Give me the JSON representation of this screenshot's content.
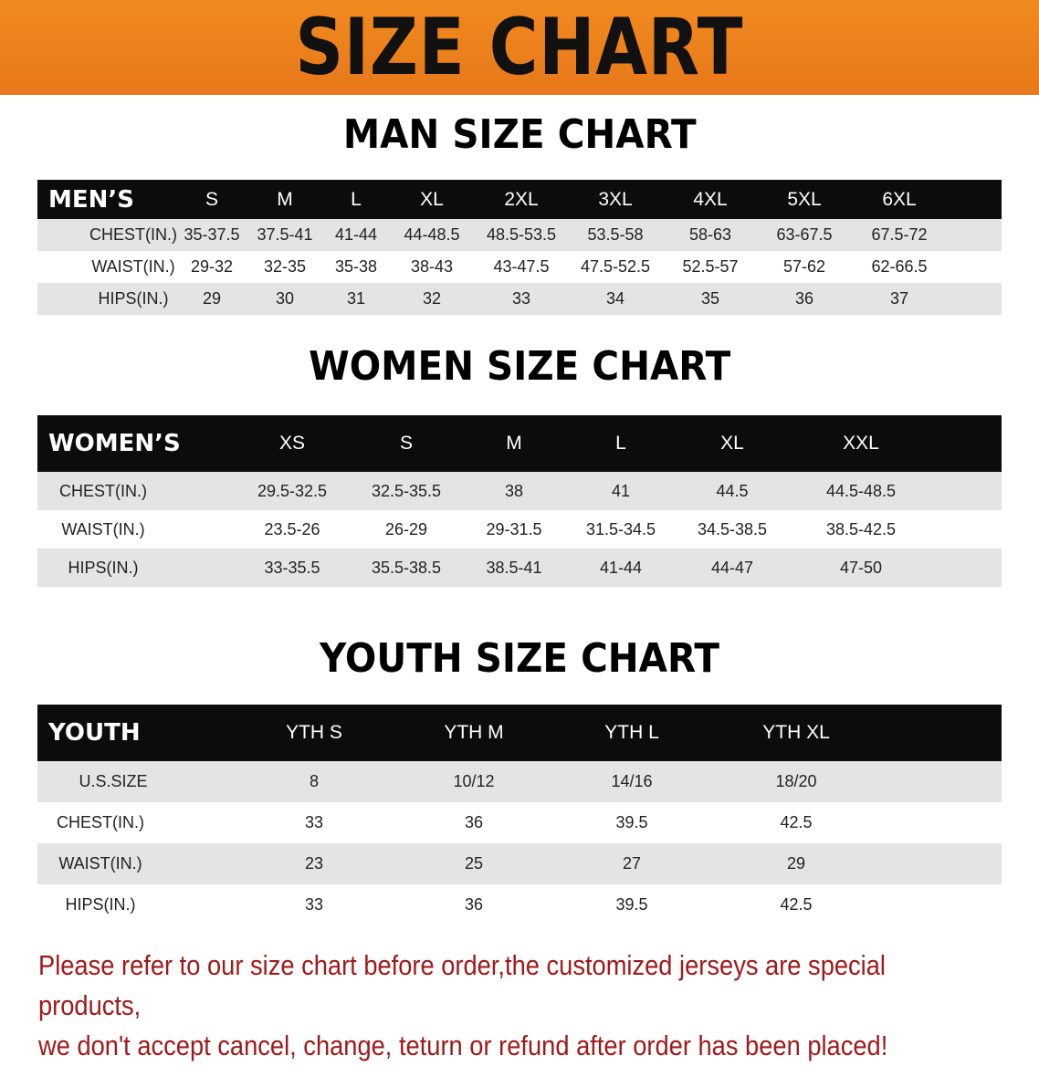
{
  "banner_title": "SIZE CHART",
  "men": {
    "title": "MAN SIZE CHART",
    "header": [
      "MEN’S",
      "S",
      "M",
      "L",
      "XL",
      "2XL",
      "3XL",
      "4XL",
      "5XL",
      "6XL"
    ],
    "rows": [
      [
        "CHEST(IN.)",
        "35-37.5",
        "37.5-41",
        "41-44",
        "44-48.5",
        "48.5-53.5",
        "53.5-58",
        "58-63",
        "63-67.5",
        "67.5-72"
      ],
      [
        "WAIST(IN.)",
        "29-32",
        "32-35",
        "35-38",
        "38-43",
        "43-47.5",
        "47.5-52.5",
        "52.5-57",
        "57-62",
        "62-66.5"
      ],
      [
        "HIPS(IN.)",
        "29",
        "30",
        "31",
        "32",
        "33",
        "34",
        "35",
        "36",
        "37"
      ]
    ]
  },
  "women": {
    "title": "WOMEN SIZE CHART",
    "header": [
      "WOMEN’S",
      "XS",
      "S",
      "M",
      "L",
      "XL",
      "XXL"
    ],
    "rows": [
      [
        "CHEST(IN.)",
        "29.5-32.5",
        "32.5-35.5",
        "38",
        "41",
        "44.5",
        "44.5-48.5"
      ],
      [
        "WAIST(IN.)",
        "23.5-26",
        "26-29",
        "29-31.5",
        "31.5-34.5",
        "34.5-38.5",
        "38.5-42.5"
      ],
      [
        "HIPS(IN.)",
        "33-35.5",
        "35.5-38.5",
        "38.5-41",
        "41-44",
        "44-47",
        "47-50"
      ]
    ]
  },
  "youth": {
    "title": "YOUTH SIZE CHART",
    "header": [
      "YOUTH",
      "YTH S",
      "YTH M",
      "YTH L",
      "YTH XL"
    ],
    "rows": [
      [
        "U.S.SIZE",
        "8",
        "10/12",
        "14/16",
        "18/20"
      ],
      [
        "CHEST(IN.)",
        "33",
        "36",
        "39.5",
        "42.5"
      ],
      [
        "WAIST(IN.)",
        "23",
        "25",
        "27",
        "29"
      ],
      [
        "HIPS(IN.)",
        "33",
        "36",
        "39.5",
        "42.5"
      ]
    ]
  },
  "notice": {
    "line1": "Please refer to our size chart before order,the customized jerseys are special products,",
    "line2": "we don't accept cancel, change, teturn or refund after order has been placed!"
  },
  "colors": {
    "banner": "#ec801c",
    "header_row": "#0c0c0c",
    "stripe": "#e4e4e4",
    "notice": "#a01a1a"
  }
}
